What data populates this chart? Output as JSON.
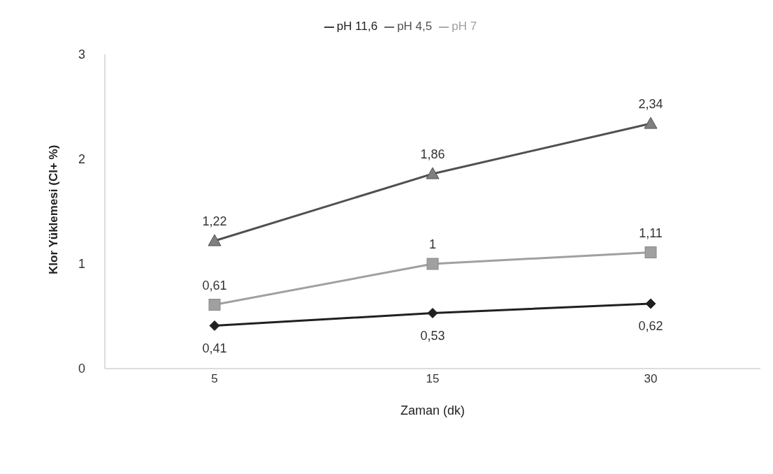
{
  "chart_data": {
    "type": "line",
    "xlabel": "Zaman (dk)",
    "ylabel": "Klor Yüklemesi (Cl+ %)",
    "categories": [
      "5",
      "15",
      "30"
    ],
    "ylim": [
      0,
      3
    ],
    "yticks": [
      0,
      1,
      2,
      3
    ],
    "grid": false,
    "legend": "top",
    "series": [
      {
        "name": "pH 11,6",
        "color": "#202020",
        "marker": "diamond",
        "values": [
          0.41,
          0.53,
          0.62
        ],
        "value_labels": [
          "0,41",
          "0,53",
          "0,62"
        ]
      },
      {
        "name": "pH 7",
        "color": "#a0a0a0",
        "marker": "square",
        "values": [
          0.61,
          1,
          1.11
        ],
        "value_labels": [
          "0,61",
          "1",
          "1,11"
        ]
      },
      {
        "name": "pH 4,5",
        "color": "#505050",
        "marker": "triangle",
        "values": [
          1.22,
          1.86,
          2.34
        ],
        "value_labels": [
          "1,22",
          "1,86",
          "2,34"
        ]
      }
    ]
  }
}
